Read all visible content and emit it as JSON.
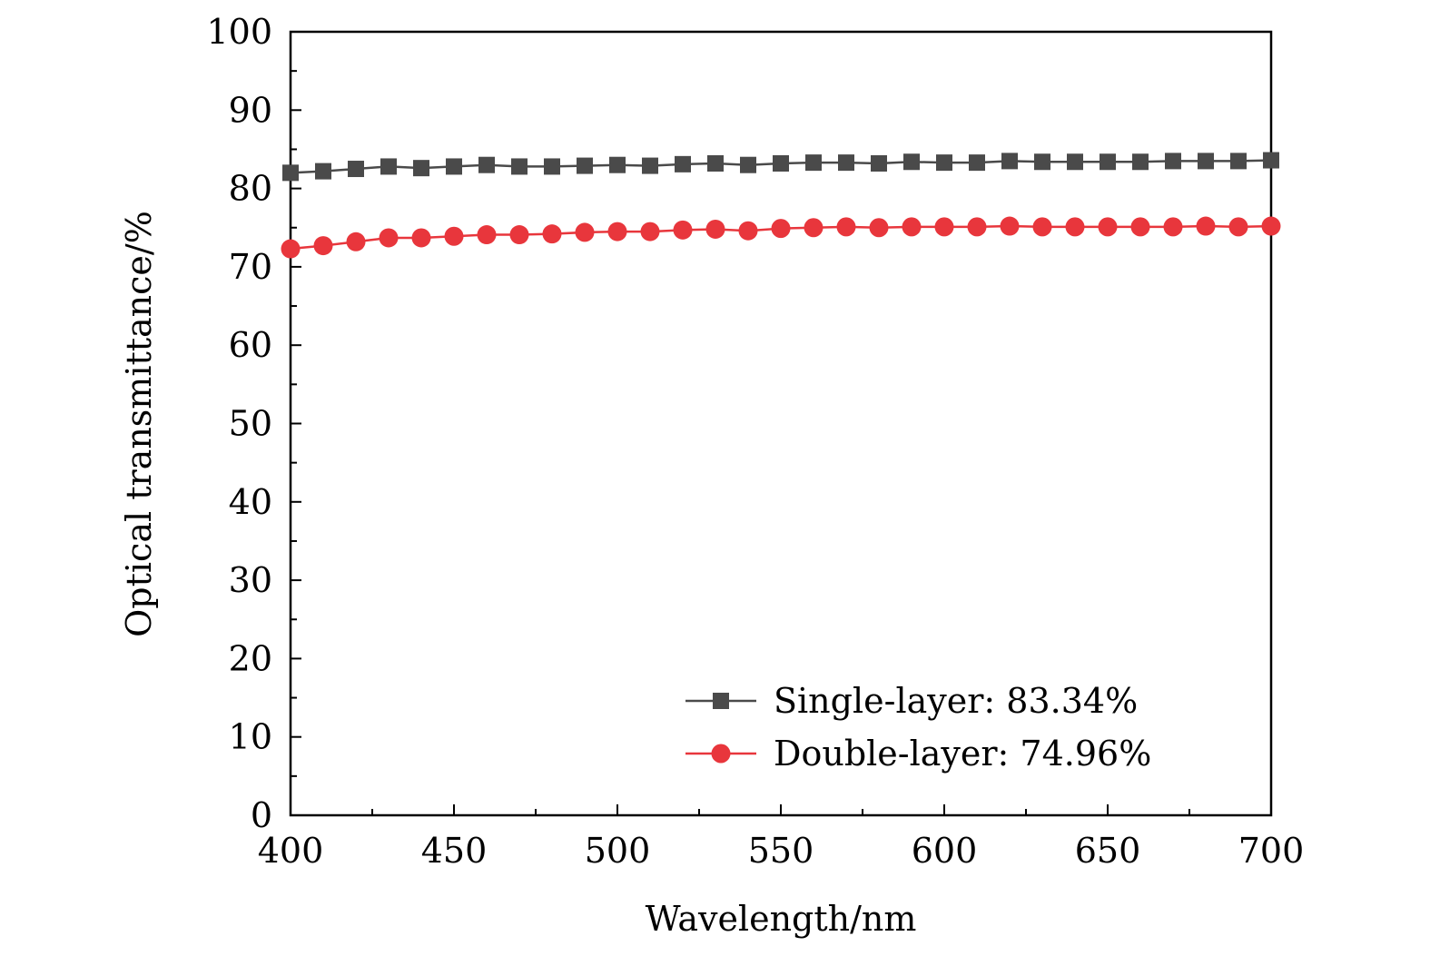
{
  "chart_data": {
    "type": "line",
    "xlabel": "Wavelength/nm",
    "ylabel": "Optical transmittance/%",
    "xlim": [
      400,
      700
    ],
    "ylim": [
      0,
      100
    ],
    "xticks": [
      400,
      450,
      500,
      550,
      600,
      650,
      700
    ],
    "yticks": [
      0,
      10,
      20,
      30,
      40,
      50,
      60,
      70,
      80,
      90,
      100
    ],
    "grid": false,
    "legend_position": "bottom-right",
    "x": [
      400,
      410,
      420,
      430,
      440,
      450,
      460,
      470,
      480,
      490,
      500,
      510,
      520,
      530,
      540,
      550,
      560,
      570,
      580,
      590,
      600,
      610,
      620,
      630,
      640,
      650,
      660,
      670,
      680,
      690,
      700
    ],
    "series": [
      {
        "name": "Single-layer: 83.34%",
        "color": "#4a4a4a",
        "marker": "square",
        "values": [
          82.0,
          82.2,
          82.5,
          82.8,
          82.6,
          82.8,
          83.0,
          82.8,
          82.8,
          82.9,
          83.0,
          82.9,
          83.1,
          83.2,
          83.0,
          83.2,
          83.3,
          83.3,
          83.2,
          83.4,
          83.3,
          83.3,
          83.5,
          83.4,
          83.4,
          83.4,
          83.4,
          83.5,
          83.5,
          83.5,
          83.6
        ]
      },
      {
        "name": "Double-layer: 74.96%",
        "color": "#e8363c",
        "marker": "circle",
        "values": [
          72.3,
          72.7,
          73.2,
          73.7,
          73.7,
          73.9,
          74.1,
          74.1,
          74.2,
          74.4,
          74.5,
          74.5,
          74.7,
          74.8,
          74.6,
          74.9,
          75.0,
          75.1,
          75.0,
          75.1,
          75.1,
          75.1,
          75.2,
          75.1,
          75.1,
          75.1,
          75.1,
          75.1,
          75.2,
          75.1,
          75.2
        ]
      }
    ]
  }
}
